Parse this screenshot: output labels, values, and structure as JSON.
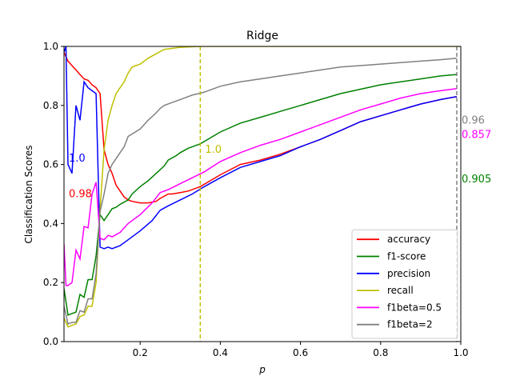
{
  "chart_data": {
    "type": "line",
    "title": "Ridge",
    "xlabel": "p",
    "ylabel": "Classification Scores",
    "xlim": [
      0.01,
      1.0
    ],
    "ylim": [
      0.0,
      1.0
    ],
    "xticks": [
      0.2,
      0.4,
      0.6,
      0.8,
      1.0
    ],
    "xtick_labels": [
      "0.2",
      "0.4",
      "0.6",
      "0.8",
      "1.0"
    ],
    "yticks": [
      0.0,
      0.2,
      0.4,
      0.6,
      0.8,
      1.0
    ],
    "ytick_labels": [
      "0.0",
      "0.2",
      "0.4",
      "0.6",
      "0.8",
      "1.0"
    ],
    "grid": false,
    "legend_position": "lower-right",
    "series": [
      {
        "name": "accuracy",
        "color": "#ff0000",
        "points": [
          [
            0.01,
            0.98
          ],
          [
            0.02,
            0.95
          ],
          [
            0.03,
            0.935
          ],
          [
            0.04,
            0.92
          ],
          [
            0.05,
            0.905
          ],
          [
            0.06,
            0.89
          ],
          [
            0.07,
            0.885
          ],
          [
            0.08,
            0.87
          ],
          [
            0.09,
            0.86
          ],
          [
            0.1,
            0.84
          ],
          [
            0.11,
            0.65
          ],
          [
            0.12,
            0.6
          ],
          [
            0.13,
            0.57
          ],
          [
            0.14,
            0.53
          ],
          [
            0.15,
            0.51
          ],
          [
            0.16,
            0.49
          ],
          [
            0.17,
            0.48
          ],
          [
            0.18,
            0.475
          ],
          [
            0.2,
            0.47
          ],
          [
            0.22,
            0.47
          ],
          [
            0.24,
            0.475
          ],
          [
            0.25,
            0.485
          ],
          [
            0.27,
            0.5
          ],
          [
            0.28,
            0.5
          ],
          [
            0.3,
            0.505
          ],
          [
            0.32,
            0.51
          ],
          [
            0.35,
            0.525
          ],
          [
            0.4,
            0.565
          ],
          [
            0.45,
            0.6
          ],
          [
            0.5,
            0.615
          ],
          [
            0.55,
            0.635
          ],
          [
            0.6,
            0.66
          ],
          [
            0.65,
            0.685
          ],
          [
            0.7,
            0.715
          ],
          [
            0.75,
            0.745
          ],
          [
            0.8,
            0.765
          ],
          [
            0.85,
            0.785
          ],
          [
            0.9,
            0.805
          ],
          [
            0.95,
            0.82
          ],
          [
            0.99,
            0.83
          ]
        ]
      },
      {
        "name": "f1-score",
        "color": "#008000",
        "points": [
          [
            0.01,
            0.18
          ],
          [
            0.02,
            0.09
          ],
          [
            0.03,
            0.095
          ],
          [
            0.04,
            0.1
          ],
          [
            0.05,
            0.16
          ],
          [
            0.06,
            0.15
          ],
          [
            0.07,
            0.21
          ],
          [
            0.08,
            0.21
          ],
          [
            0.09,
            0.29
          ],
          [
            0.1,
            0.43
          ],
          [
            0.11,
            0.41
          ],
          [
            0.12,
            0.43
          ],
          [
            0.13,
            0.45
          ],
          [
            0.14,
            0.455
          ],
          [
            0.15,
            0.465
          ],
          [
            0.17,
            0.48
          ],
          [
            0.18,
            0.5
          ],
          [
            0.2,
            0.525
          ],
          [
            0.22,
            0.545
          ],
          [
            0.24,
            0.57
          ],
          [
            0.26,
            0.595
          ],
          [
            0.27,
            0.615
          ],
          [
            0.29,
            0.63
          ],
          [
            0.3,
            0.64
          ],
          [
            0.32,
            0.655
          ],
          [
            0.35,
            0.67
          ],
          [
            0.4,
            0.71
          ],
          [
            0.45,
            0.74
          ],
          [
            0.5,
            0.76
          ],
          [
            0.55,
            0.78
          ],
          [
            0.6,
            0.8
          ],
          [
            0.65,
            0.82
          ],
          [
            0.7,
            0.84
          ],
          [
            0.75,
            0.855
          ],
          [
            0.8,
            0.87
          ],
          [
            0.85,
            0.88
          ],
          [
            0.9,
            0.89
          ],
          [
            0.95,
            0.9
          ],
          [
            0.99,
            0.905
          ]
        ]
      },
      {
        "name": "precision",
        "color": "#0000ff",
        "points": [
          [
            0.01,
            0.98
          ],
          [
            0.015,
            1.0
          ],
          [
            0.02,
            0.6
          ],
          [
            0.03,
            0.57
          ],
          [
            0.04,
            0.8
          ],
          [
            0.05,
            0.75
          ],
          [
            0.06,
            0.88
          ],
          [
            0.07,
            0.86
          ],
          [
            0.08,
            0.85
          ],
          [
            0.09,
            0.84
          ],
          [
            0.1,
            0.32
          ],
          [
            0.11,
            0.315
          ],
          [
            0.12,
            0.32
          ],
          [
            0.13,
            0.315
          ],
          [
            0.15,
            0.325
          ],
          [
            0.17,
            0.345
          ],
          [
            0.2,
            0.375
          ],
          [
            0.23,
            0.41
          ],
          [
            0.25,
            0.445
          ],
          [
            0.27,
            0.46
          ],
          [
            0.3,
            0.48
          ],
          [
            0.33,
            0.5
          ],
          [
            0.36,
            0.525
          ],
          [
            0.4,
            0.555
          ],
          [
            0.45,
            0.59
          ],
          [
            0.5,
            0.61
          ],
          [
            0.55,
            0.63
          ],
          [
            0.6,
            0.66
          ],
          [
            0.65,
            0.685
          ],
          [
            0.7,
            0.715
          ],
          [
            0.75,
            0.745
          ],
          [
            0.8,
            0.765
          ],
          [
            0.85,
            0.785
          ],
          [
            0.9,
            0.805
          ],
          [
            0.95,
            0.82
          ],
          [
            0.99,
            0.83
          ]
        ]
      },
      {
        "name": "recall",
        "color": "#bfbf00",
        "points": [
          [
            0.01,
            0.08
          ],
          [
            0.02,
            0.05
          ],
          [
            0.03,
            0.055
          ],
          [
            0.04,
            0.06
          ],
          [
            0.05,
            0.085
          ],
          [
            0.06,
            0.09
          ],
          [
            0.07,
            0.12
          ],
          [
            0.08,
            0.12
          ],
          [
            0.09,
            0.2
          ],
          [
            0.1,
            0.45
          ],
          [
            0.11,
            0.65
          ],
          [
            0.12,
            0.75
          ],
          [
            0.13,
            0.8
          ],
          [
            0.14,
            0.84
          ],
          [
            0.15,
            0.86
          ],
          [
            0.16,
            0.88
          ],
          [
            0.17,
            0.91
          ],
          [
            0.18,
            0.93
          ],
          [
            0.2,
            0.94
          ],
          [
            0.22,
            0.96
          ],
          [
            0.24,
            0.975
          ],
          [
            0.26,
            0.99
          ],
          [
            0.3,
            0.997
          ],
          [
            0.35,
            1.0
          ],
          [
            0.6,
            1.0
          ],
          [
            1.0,
            1.0
          ]
        ]
      },
      {
        "name": "f1beta=0.5",
        "color": "#ff00ff",
        "points": [
          [
            0.01,
            0.33
          ],
          [
            0.015,
            0.19
          ],
          [
            0.02,
            0.19
          ],
          [
            0.03,
            0.2
          ],
          [
            0.04,
            0.31
          ],
          [
            0.05,
            0.28
          ],
          [
            0.06,
            0.39
          ],
          [
            0.07,
            0.385
          ],
          [
            0.08,
            0.5
          ],
          [
            0.09,
            0.54
          ],
          [
            0.1,
            0.35
          ],
          [
            0.11,
            0.345
          ],
          [
            0.12,
            0.36
          ],
          [
            0.13,
            0.355
          ],
          [
            0.15,
            0.37
          ],
          [
            0.17,
            0.4
          ],
          [
            0.2,
            0.43
          ],
          [
            0.23,
            0.47
          ],
          [
            0.25,
            0.505
          ],
          [
            0.27,
            0.515
          ],
          [
            0.3,
            0.535
          ],
          [
            0.33,
            0.555
          ],
          [
            0.36,
            0.575
          ],
          [
            0.4,
            0.61
          ],
          [
            0.45,
            0.64
          ],
          [
            0.5,
            0.665
          ],
          [
            0.55,
            0.685
          ],
          [
            0.6,
            0.71
          ],
          [
            0.65,
            0.735
          ],
          [
            0.7,
            0.76
          ],
          [
            0.75,
            0.785
          ],
          [
            0.8,
            0.805
          ],
          [
            0.85,
            0.825
          ],
          [
            0.9,
            0.84
          ],
          [
            0.95,
            0.85
          ],
          [
            0.99,
            0.857
          ]
        ]
      },
      {
        "name": "f1beta=2",
        "color": "#808080",
        "points": [
          [
            0.01,
            0.12
          ],
          [
            0.02,
            0.06
          ],
          [
            0.03,
            0.065
          ],
          [
            0.04,
            0.065
          ],
          [
            0.05,
            0.105
          ],
          [
            0.06,
            0.1
          ],
          [
            0.07,
            0.145
          ],
          [
            0.08,
            0.145
          ],
          [
            0.09,
            0.23
          ],
          [
            0.1,
            0.44
          ],
          [
            0.11,
            0.5
          ],
          [
            0.12,
            0.57
          ],
          [
            0.13,
            0.6
          ],
          [
            0.14,
            0.62
          ],
          [
            0.15,
            0.64
          ],
          [
            0.16,
            0.66
          ],
          [
            0.17,
            0.695
          ],
          [
            0.2,
            0.72
          ],
          [
            0.22,
            0.75
          ],
          [
            0.24,
            0.775
          ],
          [
            0.25,
            0.79
          ],
          [
            0.26,
            0.8
          ],
          [
            0.28,
            0.81
          ],
          [
            0.3,
            0.82
          ],
          [
            0.33,
            0.835
          ],
          [
            0.36,
            0.845
          ],
          [
            0.4,
            0.865
          ],
          [
            0.45,
            0.88
          ],
          [
            0.5,
            0.89
          ],
          [
            0.55,
            0.9
          ],
          [
            0.6,
            0.91
          ],
          [
            0.65,
            0.92
          ],
          [
            0.7,
            0.93
          ],
          [
            0.75,
            0.935
          ],
          [
            0.8,
            0.94
          ],
          [
            0.85,
            0.945
          ],
          [
            0.9,
            0.95
          ],
          [
            0.95,
            0.955
          ],
          [
            0.99,
            0.96
          ]
        ]
      }
    ],
    "reference_lines": [
      {
        "axis": "x",
        "value": 0.35,
        "color": "#bfbf00",
        "style": "dashed"
      },
      {
        "axis": "x",
        "value": 0.99,
        "color": "#808080",
        "style": "dashed"
      }
    ],
    "annotations": [
      {
        "text": "1.0",
        "x": 0.02,
        "y": 0.62,
        "color": "#0000ff"
      },
      {
        "text": "0.98",
        "x": 0.02,
        "y": 0.5,
        "color": "#ff0000"
      },
      {
        "text": "1.0",
        "x": 0.36,
        "y": 0.65,
        "color": "#bfbf00"
      },
      {
        "text": "0.96",
        "x": 1.0,
        "y": 0.75,
        "color": "#808080"
      },
      {
        "text": "0.857",
        "x": 1.0,
        "y": 0.7,
        "color": "#ff00ff"
      },
      {
        "text": "0.905",
        "x": 1.0,
        "y": 0.55,
        "color": "#008000"
      }
    ]
  }
}
